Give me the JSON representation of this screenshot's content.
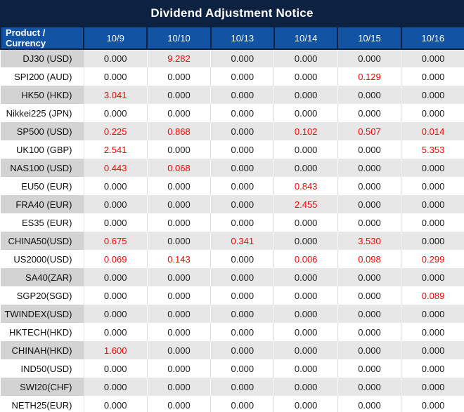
{
  "title": "Dividend Adjustment Notice",
  "colors": {
    "title_bg": "#0d2141",
    "header_bg": "#1253a4",
    "header_border": "#0d2141",
    "row_gray_product_bg": "#d3d3d3",
    "row_gray_value_bg": "#e7e7e7",
    "row_white_bg": "#ffffff",
    "value_text": "#1c1c1c",
    "nonzero_value_text": "#fe0000",
    "header_text": "#ffffff"
  },
  "table": {
    "product_header": "Product / Currency",
    "date_columns": [
      "10/9",
      "10/10",
      "10/13",
      "10/14",
      "10/15",
      "10/16"
    ],
    "zero_value": "0.000",
    "rows": [
      {
        "product": "DJ30 (USD)",
        "values": [
          "0.000",
          "9.282",
          "0.000",
          "0.000",
          "0.000",
          "0.000"
        ]
      },
      {
        "product": "SPI200 (AUD)",
        "values": [
          "0.000",
          "0.000",
          "0.000",
          "0.000",
          "0.129",
          "0.000"
        ]
      },
      {
        "product": "HK50 (HKD)",
        "values": [
          "3.041",
          "0.000",
          "0.000",
          "0.000",
          "0.000",
          "0.000"
        ]
      },
      {
        "product": "Nikkei225 (JPN)",
        "values": [
          "0.000",
          "0.000",
          "0.000",
          "0.000",
          "0.000",
          "0.000"
        ]
      },
      {
        "product": "SP500 (USD)",
        "values": [
          "0.225",
          "0.868",
          "0.000",
          "0.102",
          "0.507",
          "0.014"
        ]
      },
      {
        "product": "UK100 (GBP)",
        "values": [
          "2.541",
          "0.000",
          "0.000",
          "0.000",
          "0.000",
          "5.353"
        ]
      },
      {
        "product": "NAS100 (USD)",
        "values": [
          "0.443",
          "0.068",
          "0.000",
          "0.000",
          "0.000",
          "0.000"
        ]
      },
      {
        "product": "EU50 (EUR)",
        "values": [
          "0.000",
          "0.000",
          "0.000",
          "0.843",
          "0.000",
          "0.000"
        ]
      },
      {
        "product": "FRA40 (EUR)",
        "values": [
          "0.000",
          "0.000",
          "0.000",
          "2.455",
          "0.000",
          "0.000"
        ]
      },
      {
        "product": "ES35 (EUR)",
        "values": [
          "0.000",
          "0.000",
          "0.000",
          "0.000",
          "0.000",
          "0.000"
        ]
      },
      {
        "product": "CHINA50(USD)",
        "values": [
          "0.675",
          "0.000",
          "0.341",
          "0.000",
          "3.530",
          "0.000"
        ]
      },
      {
        "product": "US2000(USD)",
        "values": [
          "0.069",
          "0.143",
          "0.000",
          "0.006",
          "0.098",
          "0.299"
        ]
      },
      {
        "product": "SA40(ZAR)",
        "values": [
          "0.000",
          "0.000",
          "0.000",
          "0.000",
          "0.000",
          "0.000"
        ]
      },
      {
        "product": "SGP20(SGD)",
        "values": [
          "0.000",
          "0.000",
          "0.000",
          "0.000",
          "0.000",
          "0.089"
        ]
      },
      {
        "product": "TWINDEX(USD)",
        "values": [
          "0.000",
          "0.000",
          "0.000",
          "0.000",
          "0.000",
          "0.000"
        ]
      },
      {
        "product": "HKTECH(HKD)",
        "values": [
          "0.000",
          "0.000",
          "0.000",
          "0.000",
          "0.000",
          "0.000"
        ]
      },
      {
        "product": "CHINAH(HKD)",
        "values": [
          "1.600",
          "0.000",
          "0.000",
          "0.000",
          "0.000",
          "0.000"
        ]
      },
      {
        "product": "IND50(USD)",
        "values": [
          "0.000",
          "0.000",
          "0.000",
          "0.000",
          "0.000",
          "0.000"
        ]
      },
      {
        "product": "SWI20(CHF)",
        "values": [
          "0.000",
          "0.000",
          "0.000",
          "0.000",
          "0.000",
          "0.000"
        ]
      },
      {
        "product": "NETH25(EUR)",
        "values": [
          "0.000",
          "0.000",
          "0.000",
          "0.000",
          "0.000",
          "0.000"
        ]
      }
    ]
  }
}
